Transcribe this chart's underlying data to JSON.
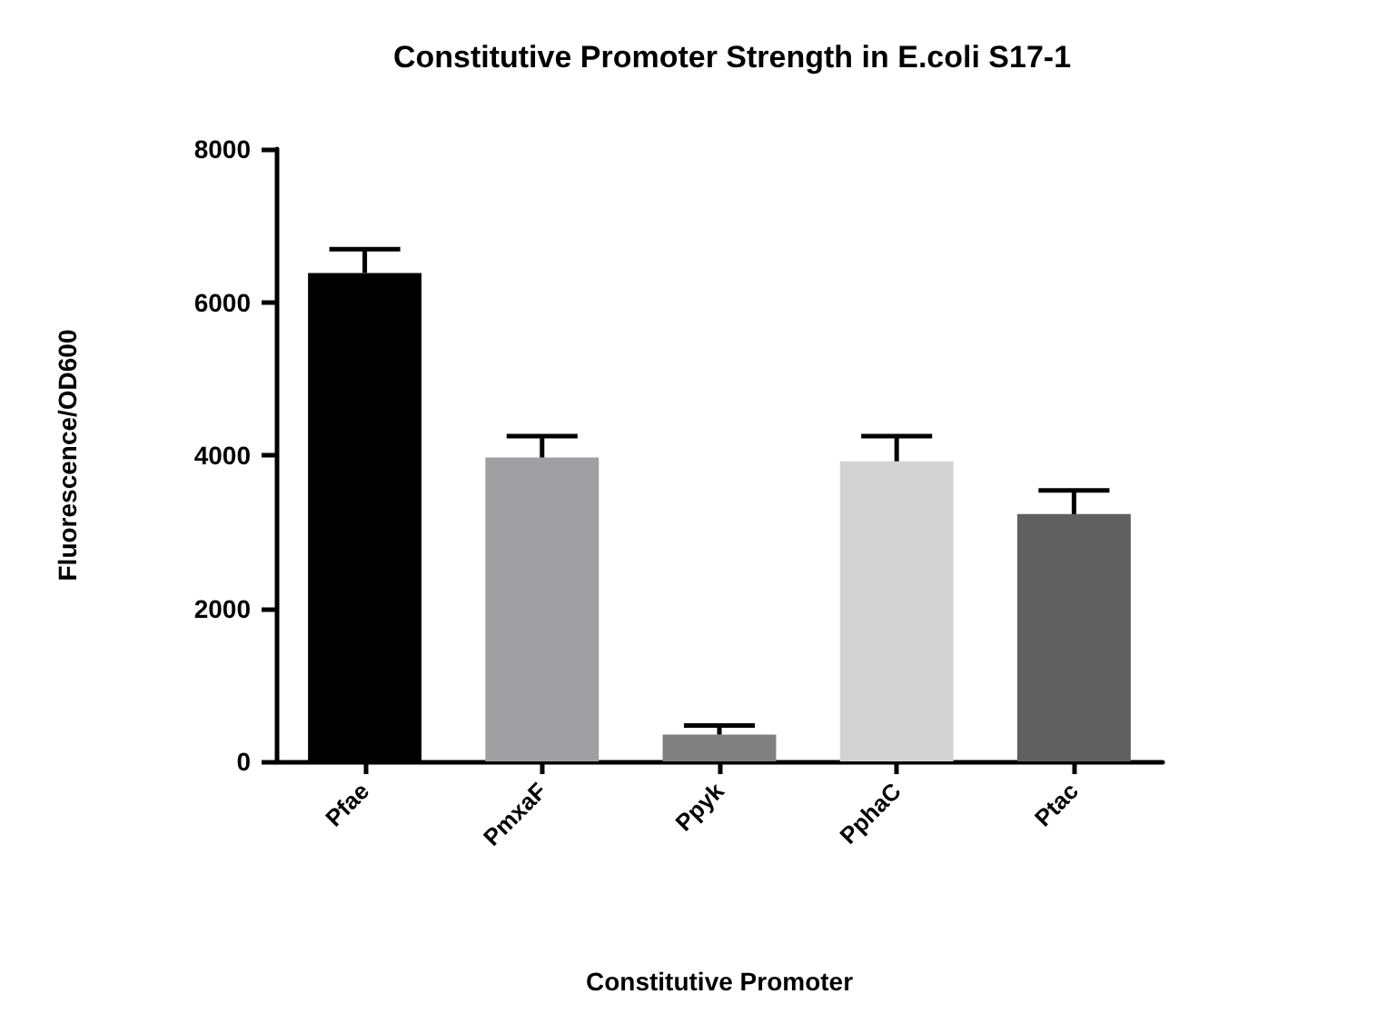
{
  "chart_data": {
    "type": "bar",
    "title": "Constitutive Promoter Strength in E.coli S17-1",
    "xlabel": "Constitutive Promoter",
    "ylabel": "Fluorescence/OD600",
    "categories": [
      "Pfae",
      "PmxaF",
      "Ppyk",
      "PphaC",
      "Ptac"
    ],
    "values": [
      6380,
      3970,
      350,
      3920,
      3230
    ],
    "errors": [
      [
        6380,
        6690
      ],
      [
        3970,
        4250
      ],
      [
        350,
        470
      ],
      [
        3920,
        4250
      ],
      [
        3230,
        3540
      ]
    ],
    "colors": [
      "#000000",
      "#a0a0a4",
      "#808080",
      "#d3d3d3",
      "#606060"
    ],
    "ylim": [
      0,
      8000
    ],
    "yticks": [
      0,
      2000,
      4000,
      6000,
      8000
    ]
  }
}
